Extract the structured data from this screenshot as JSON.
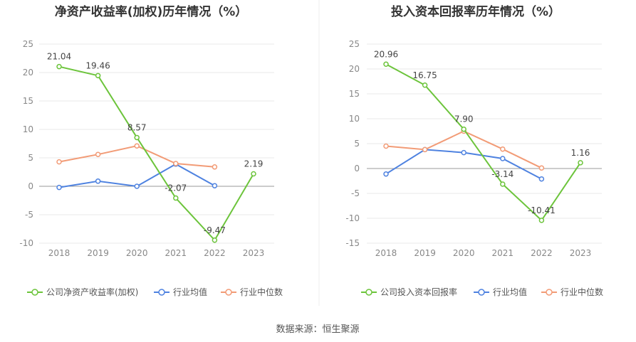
{
  "source": "数据来源：恒生聚源",
  "colors": {
    "company": "#6cc43b",
    "avg": "#4e82e0",
    "median": "#f29b76",
    "axis": "#999999",
    "grid": "#e8e8e8"
  },
  "chart_data": [
    {
      "type": "line",
      "title": "净资产收益率(加权)历年情况（%）",
      "categories": [
        "2018",
        "2019",
        "2020",
        "2021",
        "2022",
        "2023"
      ],
      "ylim": [
        -10,
        25
      ],
      "yticks": [
        -10,
        -5,
        0,
        5,
        10,
        15,
        20,
        25
      ],
      "legend_position": "bottom",
      "series": [
        {
          "name": "公司净资产收益率(加权)",
          "key": "company",
          "values": [
            21.04,
            19.46,
            8.57,
            -2.07,
            -9.47,
            2.19
          ],
          "labels": [
            "21.04",
            "19.46",
            "8.57",
            "-2.07",
            "-9.47",
            "2.19"
          ]
        },
        {
          "name": "行业均值",
          "key": "avg",
          "values": [
            -0.2,
            0.9,
            0.0,
            3.9,
            0.1,
            null
          ]
        },
        {
          "name": "行业中位数",
          "key": "median",
          "values": [
            4.3,
            5.6,
            7.1,
            4.0,
            3.4,
            null
          ]
        }
      ]
    },
    {
      "type": "line",
      "title": "投入资本回报率历年情况（%）",
      "categories": [
        "2018",
        "2019",
        "2020",
        "2021",
        "2022",
        "2023"
      ],
      "ylim": [
        -15,
        25
      ],
      "yticks": [
        -15,
        -10,
        -5,
        0,
        5,
        10,
        15,
        20,
        25
      ],
      "legend_position": "bottom",
      "series": [
        {
          "name": "公司投入资本回报率",
          "key": "company",
          "values": [
            20.96,
            16.75,
            7.9,
            -3.14,
            -10.41,
            1.16
          ],
          "labels": [
            "20.96",
            "16.75",
            "7.90",
            "-3.14",
            "-10.41",
            "1.16"
          ]
        },
        {
          "name": "行业均值",
          "key": "avg",
          "values": [
            -1.1,
            3.8,
            3.2,
            2.0,
            -2.1,
            null
          ]
        },
        {
          "name": "行业中位数",
          "key": "median",
          "values": [
            4.5,
            3.8,
            7.5,
            3.9,
            0.1,
            null
          ]
        }
      ]
    }
  ]
}
